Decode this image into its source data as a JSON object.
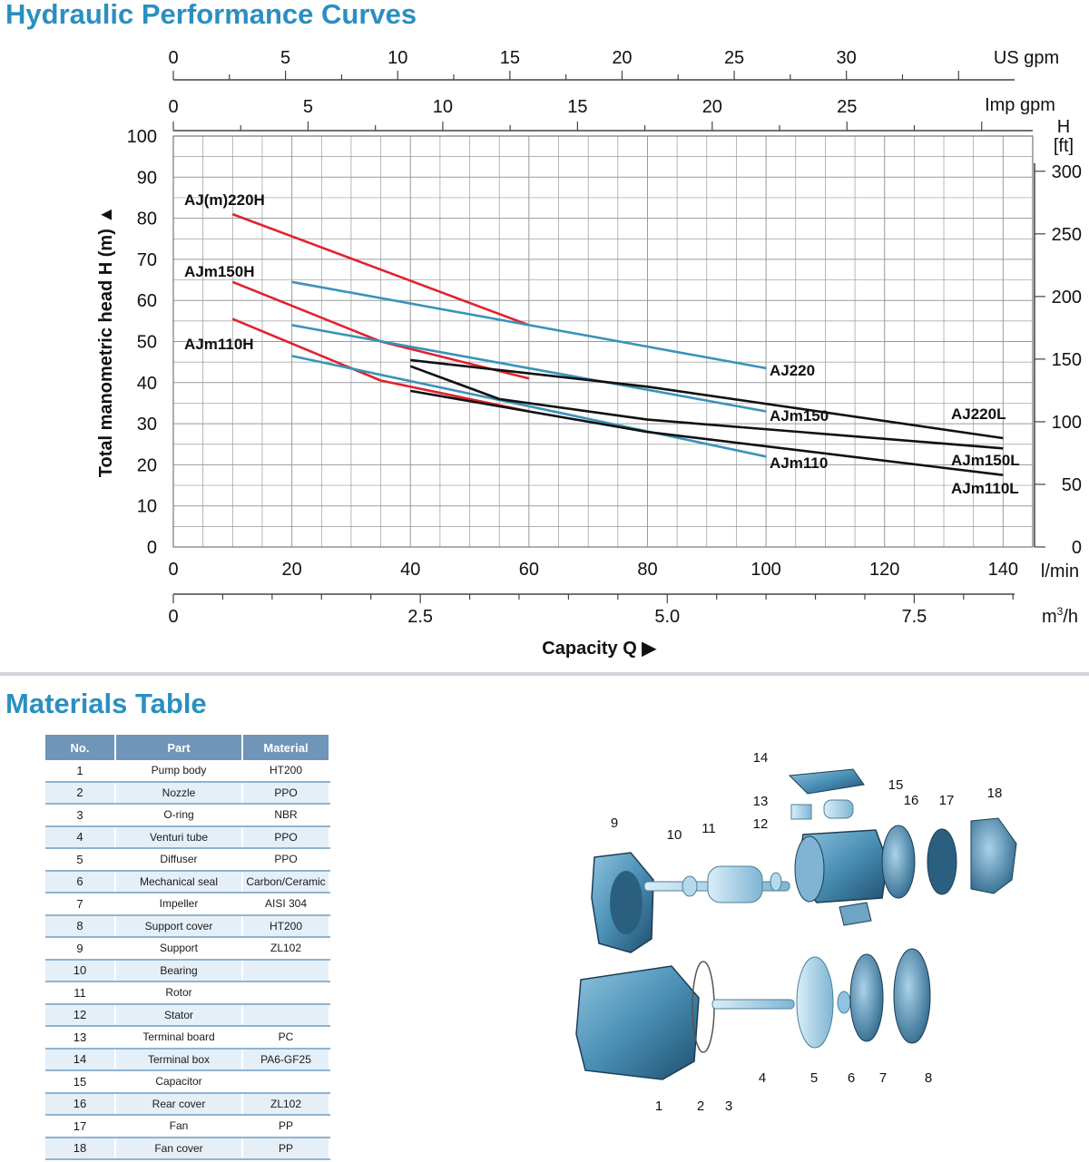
{
  "titles": {
    "curves": "Hydraulic Performance Curves",
    "materials": "Materials Table"
  },
  "colors": {
    "title": "#2b8fc0",
    "red_curves": "#e0222e",
    "blue_curves": "#3a93b8",
    "black_curves": "#111111",
    "table_header": "#6f95b8",
    "table_row_alt": "#e5eff8",
    "table_rule": "#8fb3d1"
  },
  "chart_data": {
    "type": "line",
    "x_unit": "l/min",
    "y_unit": "m",
    "xlim": [
      0,
      145
    ],
    "ylim": [
      0,
      100
    ],
    "grid": true,
    "ylabel": "Total manometric head H (m) ▲",
    "xlabel": "Capacity Q ▶",
    "y_ticks": [
      "0",
      "10",
      "20",
      "30",
      "40",
      "50",
      "60",
      "70",
      "80",
      "90",
      "100"
    ],
    "x_ticks": [
      "0",
      "20",
      "40",
      "60",
      "80",
      "100",
      "120",
      "140"
    ],
    "x_unit_label": "l/min",
    "us_gpm": {
      "label": "US gpm",
      "ticks": [
        "0",
        "5",
        "10",
        "15",
        "20",
        "25",
        "30"
      ]
    },
    "imp_gpm": {
      "label": "Imp gpm",
      "ticks": [
        "0",
        "5",
        "10",
        "15",
        "20",
        "25"
      ]
    },
    "m3h": {
      "label_main": "m",
      "label_sup": "3",
      "label_tail": "/h",
      "ticks": [
        "0",
        "2.5",
        "5.0",
        "7.5"
      ]
    },
    "ft": {
      "label_top": "H",
      "label_unit": "[ft]",
      "ticks": [
        "0",
        "50",
        "100",
        "150",
        "200",
        "250",
        "300"
      ]
    },
    "series": [
      {
        "name": "AJ(m)220H",
        "color": "red",
        "x": [
          10,
          60
        ],
        "y": [
          81,
          54
        ]
      },
      {
        "name": "AJm150H",
        "color": "red",
        "x": [
          10,
          35,
          60
        ],
        "y": [
          64.5,
          50,
          41
        ]
      },
      {
        "name": "AJm110H",
        "color": "red",
        "x": [
          10,
          35,
          60
        ],
        "y": [
          55.5,
          40.5,
          33
        ]
      },
      {
        "name": "AJ220",
        "color": "blue",
        "x": [
          20,
          100
        ],
        "y": [
          64.5,
          43.5
        ]
      },
      {
        "name": "AJm150",
        "color": "blue",
        "x": [
          20,
          100
        ],
        "y": [
          54,
          33
        ]
      },
      {
        "name": "AJm110",
        "color": "blue",
        "x": [
          20,
          100
        ],
        "y": [
          46.5,
          22
        ]
      },
      {
        "name": "AJ220L",
        "color": "black",
        "x": [
          40,
          80,
          140
        ],
        "y": [
          45.5,
          39,
          26.5
        ]
      },
      {
        "name": "AJm150L",
        "color": "black",
        "x": [
          40,
          55,
          80,
          140
        ],
        "y": [
          44,
          36,
          31,
          24
        ]
      },
      {
        "name": "AJm110L",
        "color": "black",
        "x": [
          40,
          80,
          140
        ],
        "y": [
          38,
          28,
          17.5
        ]
      }
    ]
  },
  "materials": {
    "headers": [
      "No.",
      "Part",
      "Material"
    ],
    "rows": [
      [
        "1",
        "Pump body",
        "HT200"
      ],
      [
        "2",
        "Nozzle",
        "PPO"
      ],
      [
        "3",
        "O-ring",
        "NBR"
      ],
      [
        "4",
        "Venturi tube",
        "PPO"
      ],
      [
        "5",
        "Diffuser",
        "PPO"
      ],
      [
        "6",
        "Mechanical seal",
        "Carbon/Ceramic"
      ],
      [
        "7",
        "Impeller",
        "AISI 304"
      ],
      [
        "8",
        "Support cover",
        "HT200"
      ],
      [
        "9",
        "Support",
        "ZL102"
      ],
      [
        "10",
        "Bearing",
        ""
      ],
      [
        "11",
        "Rotor",
        ""
      ],
      [
        "12",
        "Stator",
        ""
      ],
      [
        "13",
        "Terminal board",
        "PC"
      ],
      [
        "14",
        "Terminal box",
        "PA6-GF25"
      ],
      [
        "15",
        "Capacitor",
        ""
      ],
      [
        "16",
        "Rear cover",
        "ZL102"
      ],
      [
        "17",
        "Fan",
        "PP"
      ],
      [
        "18",
        "Fan cover",
        "PP"
      ]
    ]
  },
  "diagram": {
    "callouts": [
      "1",
      "2",
      "3",
      "4",
      "5",
      "6",
      "7",
      "8",
      "9",
      "10",
      "11",
      "12",
      "13",
      "14",
      "15",
      "16",
      "17",
      "18"
    ]
  }
}
